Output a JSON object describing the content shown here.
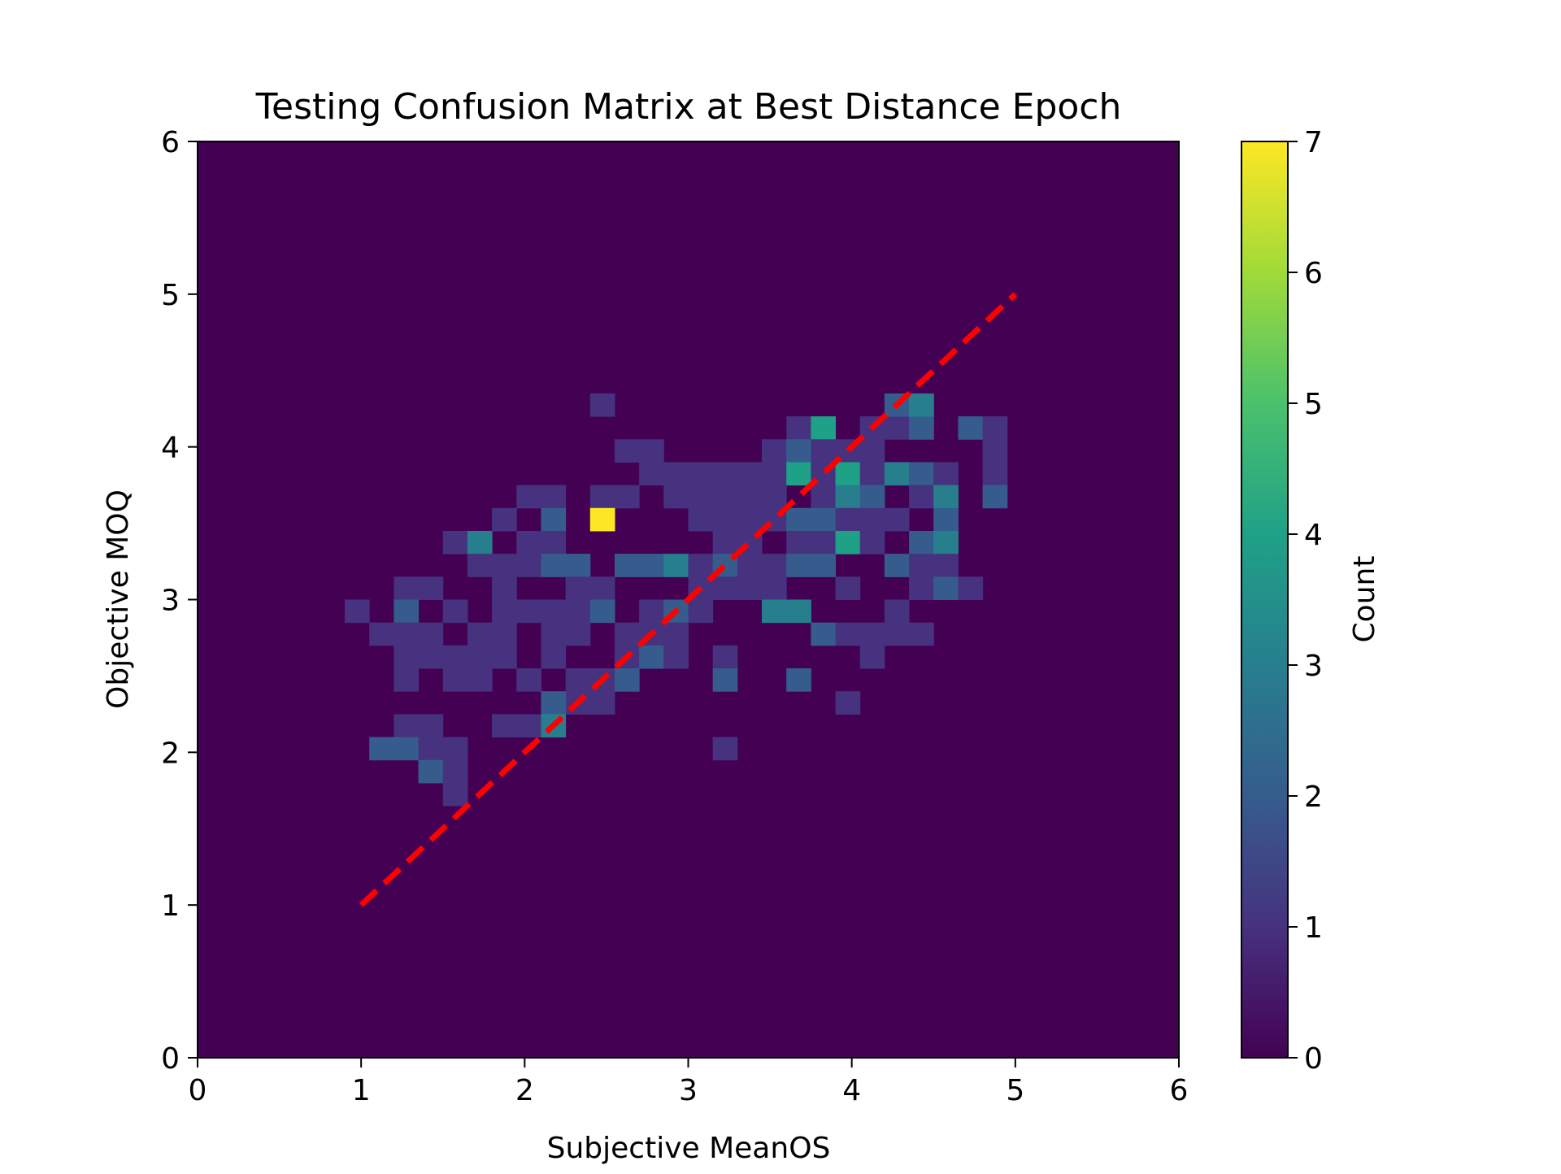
{
  "chart_data": {
    "type": "heatmap",
    "title": "Testing Confusion Matrix at Best Distance Epoch",
    "xlabel": "Subjective MeanOS",
    "ylabel": "Objective MOQ",
    "xlim": [
      0,
      6
    ],
    "ylim": [
      0,
      6
    ],
    "x_ticks": [
      "0",
      "1",
      "2",
      "3",
      "4",
      "5",
      "6"
    ],
    "y_ticks": [
      "0",
      "1",
      "2",
      "3",
      "4",
      "5",
      "6"
    ],
    "bin_width": 0.15,
    "bin_height": 0.15,
    "colorbar": {
      "label": "Count",
      "min": 0,
      "max": 7,
      "ticks": [
        "0",
        "1",
        "2",
        "3",
        "4",
        "5",
        "6",
        "7"
      ],
      "colormap": "viridis"
    },
    "reference_line": {
      "x": [
        1,
        5
      ],
      "y": [
        1,
        5
      ],
      "color": "#ff0000",
      "style": "dashed"
    },
    "cells": [
      {
        "x": 2.4,
        "y": 4.2,
        "count": 1
      },
      {
        "x": 3.6,
        "y": 4.05,
        "count": 1
      },
      {
        "x": 3.75,
        "y": 4.05,
        "count": 4
      },
      {
        "x": 4.05,
        "y": 4.05,
        "count": 1
      },
      {
        "x": 4.2,
        "y": 4.05,
        "count": 1
      },
      {
        "x": 4.35,
        "y": 4.05,
        "count": 2
      },
      {
        "x": 4.65,
        "y": 4.05,
        "count": 2
      },
      {
        "x": 4.8,
        "y": 4.05,
        "count": 1
      },
      {
        "x": 4.2,
        "y": 4.2,
        "count": 2
      },
      {
        "x": 4.35,
        "y": 4.2,
        "count": 3
      },
      {
        "x": 2.55,
        "y": 3.9,
        "count": 1
      },
      {
        "x": 2.7,
        "y": 3.9,
        "count": 1
      },
      {
        "x": 3.45,
        "y": 3.9,
        "count": 1
      },
      {
        "x": 3.6,
        "y": 3.9,
        "count": 2
      },
      {
        "x": 3.75,
        "y": 3.9,
        "count": 1
      },
      {
        "x": 3.9,
        "y": 3.9,
        "count": 1
      },
      {
        "x": 4.05,
        "y": 3.9,
        "count": 1
      },
      {
        "x": 4.8,
        "y": 3.9,
        "count": 1
      },
      {
        "x": 2.7,
        "y": 3.75,
        "count": 1
      },
      {
        "x": 2.85,
        "y": 3.75,
        "count": 1
      },
      {
        "x": 3.0,
        "y": 3.75,
        "count": 1
      },
      {
        "x": 3.15,
        "y": 3.75,
        "count": 1
      },
      {
        "x": 3.3,
        "y": 3.75,
        "count": 1
      },
      {
        "x": 3.45,
        "y": 3.75,
        "count": 1
      },
      {
        "x": 3.6,
        "y": 3.75,
        "count": 4
      },
      {
        "x": 3.75,
        "y": 3.75,
        "count": 1
      },
      {
        "x": 3.9,
        "y": 3.75,
        "count": 4
      },
      {
        "x": 4.05,
        "y": 3.75,
        "count": 1
      },
      {
        "x": 4.2,
        "y": 3.75,
        "count": 3
      },
      {
        "x": 4.35,
        "y": 3.75,
        "count": 2
      },
      {
        "x": 4.5,
        "y": 3.75,
        "count": 1
      },
      {
        "x": 4.8,
        "y": 3.75,
        "count": 1
      },
      {
        "x": 1.95,
        "y": 3.6,
        "count": 1
      },
      {
        "x": 2.1,
        "y": 3.6,
        "count": 1
      },
      {
        "x": 2.4,
        "y": 3.6,
        "count": 1
      },
      {
        "x": 2.55,
        "y": 3.6,
        "count": 1
      },
      {
        "x": 2.85,
        "y": 3.6,
        "count": 1
      },
      {
        "x": 3.0,
        "y": 3.6,
        "count": 1
      },
      {
        "x": 3.15,
        "y": 3.6,
        "count": 1
      },
      {
        "x": 3.3,
        "y": 3.6,
        "count": 1
      },
      {
        "x": 3.45,
        "y": 3.6,
        "count": 1
      },
      {
        "x": 3.75,
        "y": 3.6,
        "count": 1
      },
      {
        "x": 3.9,
        "y": 3.6,
        "count": 3
      },
      {
        "x": 4.05,
        "y": 3.6,
        "count": 2
      },
      {
        "x": 4.35,
        "y": 3.6,
        "count": 1
      },
      {
        "x": 4.5,
        "y": 3.6,
        "count": 3
      },
      {
        "x": 4.8,
        "y": 3.6,
        "count": 2
      },
      {
        "x": 1.8,
        "y": 3.45,
        "count": 1
      },
      {
        "x": 2.1,
        "y": 3.45,
        "count": 2
      },
      {
        "x": 2.4,
        "y": 3.45,
        "count": 7
      },
      {
        "x": 3.0,
        "y": 3.45,
        "count": 1
      },
      {
        "x": 3.15,
        "y": 3.45,
        "count": 1
      },
      {
        "x": 3.3,
        "y": 3.45,
        "count": 1
      },
      {
        "x": 3.45,
        "y": 3.45,
        "count": 1
      },
      {
        "x": 3.6,
        "y": 3.45,
        "count": 2
      },
      {
        "x": 3.75,
        "y": 3.45,
        "count": 2
      },
      {
        "x": 3.9,
        "y": 3.45,
        "count": 1
      },
      {
        "x": 4.05,
        "y": 3.45,
        "count": 1
      },
      {
        "x": 4.2,
        "y": 3.45,
        "count": 1
      },
      {
        "x": 4.5,
        "y": 3.45,
        "count": 2
      },
      {
        "x": 1.5,
        "y": 3.3,
        "count": 1
      },
      {
        "x": 1.65,
        "y": 3.3,
        "count": 3
      },
      {
        "x": 1.95,
        "y": 3.3,
        "count": 1
      },
      {
        "x": 2.1,
        "y": 3.3,
        "count": 1
      },
      {
        "x": 3.15,
        "y": 3.3,
        "count": 1
      },
      {
        "x": 3.3,
        "y": 3.3,
        "count": 1
      },
      {
        "x": 3.6,
        "y": 3.3,
        "count": 1
      },
      {
        "x": 3.75,
        "y": 3.3,
        "count": 1
      },
      {
        "x": 3.9,
        "y": 3.3,
        "count": 4
      },
      {
        "x": 4.05,
        "y": 3.3,
        "count": 1
      },
      {
        "x": 4.35,
        "y": 3.3,
        "count": 2
      },
      {
        "x": 4.5,
        "y": 3.3,
        "count": 3
      },
      {
        "x": 1.65,
        "y": 3.15,
        "count": 1
      },
      {
        "x": 1.8,
        "y": 3.15,
        "count": 1
      },
      {
        "x": 1.95,
        "y": 3.15,
        "count": 1
      },
      {
        "x": 2.1,
        "y": 3.15,
        "count": 2
      },
      {
        "x": 2.25,
        "y": 3.15,
        "count": 2
      },
      {
        "x": 2.55,
        "y": 3.15,
        "count": 2
      },
      {
        "x": 2.7,
        "y": 3.15,
        "count": 2
      },
      {
        "x": 2.85,
        "y": 3.15,
        "count": 3
      },
      {
        "x": 3.0,
        "y": 3.15,
        "count": 1
      },
      {
        "x": 3.15,
        "y": 3.15,
        "count": 2
      },
      {
        "x": 3.3,
        "y": 3.15,
        "count": 1
      },
      {
        "x": 3.45,
        "y": 3.15,
        "count": 1
      },
      {
        "x": 3.6,
        "y": 3.15,
        "count": 2
      },
      {
        "x": 3.75,
        "y": 3.15,
        "count": 2
      },
      {
        "x": 4.2,
        "y": 3.15,
        "count": 2
      },
      {
        "x": 4.35,
        "y": 3.15,
        "count": 1
      },
      {
        "x": 4.5,
        "y": 3.15,
        "count": 1
      },
      {
        "x": 1.2,
        "y": 3.0,
        "count": 1
      },
      {
        "x": 1.35,
        "y": 3.0,
        "count": 1
      },
      {
        "x": 1.8,
        "y": 3.0,
        "count": 1
      },
      {
        "x": 2.25,
        "y": 3.0,
        "count": 1
      },
      {
        "x": 2.4,
        "y": 3.0,
        "count": 1
      },
      {
        "x": 3.0,
        "y": 3.0,
        "count": 1
      },
      {
        "x": 3.15,
        "y": 3.0,
        "count": 1
      },
      {
        "x": 3.3,
        "y": 3.0,
        "count": 1
      },
      {
        "x": 3.45,
        "y": 3.0,
        "count": 1
      },
      {
        "x": 3.9,
        "y": 3.0,
        "count": 1
      },
      {
        "x": 4.35,
        "y": 3.0,
        "count": 1
      },
      {
        "x": 4.5,
        "y": 3.0,
        "count": 2
      },
      {
        "x": 4.65,
        "y": 3.0,
        "count": 1
      },
      {
        "x": 0.9,
        "y": 2.85,
        "count": 1
      },
      {
        "x": 1.2,
        "y": 2.85,
        "count": 2
      },
      {
        "x": 1.5,
        "y": 2.85,
        "count": 1
      },
      {
        "x": 1.8,
        "y": 2.85,
        "count": 1
      },
      {
        "x": 1.95,
        "y": 2.85,
        "count": 1
      },
      {
        "x": 2.1,
        "y": 2.85,
        "count": 1
      },
      {
        "x": 2.25,
        "y": 2.85,
        "count": 1
      },
      {
        "x": 2.4,
        "y": 2.85,
        "count": 2
      },
      {
        "x": 2.7,
        "y": 2.85,
        "count": 1
      },
      {
        "x": 2.85,
        "y": 2.85,
        "count": 2
      },
      {
        "x": 3.0,
        "y": 2.85,
        "count": 1
      },
      {
        "x": 3.45,
        "y": 2.85,
        "count": 3
      },
      {
        "x": 3.6,
        "y": 2.85,
        "count": 3
      },
      {
        "x": 4.2,
        "y": 2.85,
        "count": 1
      },
      {
        "x": 1.05,
        "y": 2.7,
        "count": 1
      },
      {
        "x": 1.2,
        "y": 2.7,
        "count": 1
      },
      {
        "x": 1.35,
        "y": 2.7,
        "count": 1
      },
      {
        "x": 1.65,
        "y": 2.7,
        "count": 1
      },
      {
        "x": 1.8,
        "y": 2.7,
        "count": 1
      },
      {
        "x": 2.1,
        "y": 2.7,
        "count": 1
      },
      {
        "x": 2.25,
        "y": 2.7,
        "count": 1
      },
      {
        "x": 2.55,
        "y": 2.7,
        "count": 1
      },
      {
        "x": 2.7,
        "y": 2.7,
        "count": 1
      },
      {
        "x": 2.85,
        "y": 2.7,
        "count": 1
      },
      {
        "x": 3.75,
        "y": 2.7,
        "count": 2
      },
      {
        "x": 3.9,
        "y": 2.7,
        "count": 1
      },
      {
        "x": 4.05,
        "y": 2.7,
        "count": 1
      },
      {
        "x": 4.2,
        "y": 2.7,
        "count": 1
      },
      {
        "x": 4.35,
        "y": 2.7,
        "count": 1
      },
      {
        "x": 1.2,
        "y": 2.55,
        "count": 1
      },
      {
        "x": 1.35,
        "y": 2.55,
        "count": 1
      },
      {
        "x": 1.5,
        "y": 2.55,
        "count": 1
      },
      {
        "x": 1.65,
        "y": 2.55,
        "count": 1
      },
      {
        "x": 1.8,
        "y": 2.55,
        "count": 1
      },
      {
        "x": 2.1,
        "y": 2.55,
        "count": 1
      },
      {
        "x": 2.55,
        "y": 2.55,
        "count": 1
      },
      {
        "x": 2.7,
        "y": 2.55,
        "count": 2
      },
      {
        "x": 2.85,
        "y": 2.55,
        "count": 1
      },
      {
        "x": 3.15,
        "y": 2.55,
        "count": 1
      },
      {
        "x": 4.05,
        "y": 2.55,
        "count": 1
      },
      {
        "x": 1.2,
        "y": 2.4,
        "count": 1
      },
      {
        "x": 1.5,
        "y": 2.4,
        "count": 1
      },
      {
        "x": 1.65,
        "y": 2.4,
        "count": 1
      },
      {
        "x": 1.95,
        "y": 2.4,
        "count": 1
      },
      {
        "x": 2.25,
        "y": 2.4,
        "count": 1
      },
      {
        "x": 2.4,
        "y": 2.4,
        "count": 1
      },
      {
        "x": 2.55,
        "y": 2.4,
        "count": 2
      },
      {
        "x": 3.15,
        "y": 2.4,
        "count": 2
      },
      {
        "x": 3.6,
        "y": 2.4,
        "count": 2
      },
      {
        "x": 2.25,
        "y": 2.25,
        "count": 1
      },
      {
        "x": 2.4,
        "y": 2.25,
        "count": 1
      },
      {
        "x": 2.1,
        "y": 2.25,
        "count": 2
      },
      {
        "x": 3.9,
        "y": 2.25,
        "count": 1
      },
      {
        "x": 1.2,
        "y": 2.1,
        "count": 1
      },
      {
        "x": 1.35,
        "y": 2.1,
        "count": 1
      },
      {
        "x": 1.8,
        "y": 2.1,
        "count": 1
      },
      {
        "x": 1.95,
        "y": 2.1,
        "count": 1
      },
      {
        "x": 2.1,
        "y": 2.1,
        "count": 3
      },
      {
        "x": 1.05,
        "y": 1.95,
        "count": 2
      },
      {
        "x": 1.2,
        "y": 1.95,
        "count": 2
      },
      {
        "x": 1.35,
        "y": 1.95,
        "count": 1
      },
      {
        "x": 1.5,
        "y": 1.95,
        "count": 1
      },
      {
        "x": 3.15,
        "y": 1.95,
        "count": 1
      },
      {
        "x": 1.35,
        "y": 1.8,
        "count": 2
      },
      {
        "x": 1.5,
        "y": 1.8,
        "count": 1
      },
      {
        "x": 1.5,
        "y": 1.65,
        "count": 1
      }
    ]
  }
}
